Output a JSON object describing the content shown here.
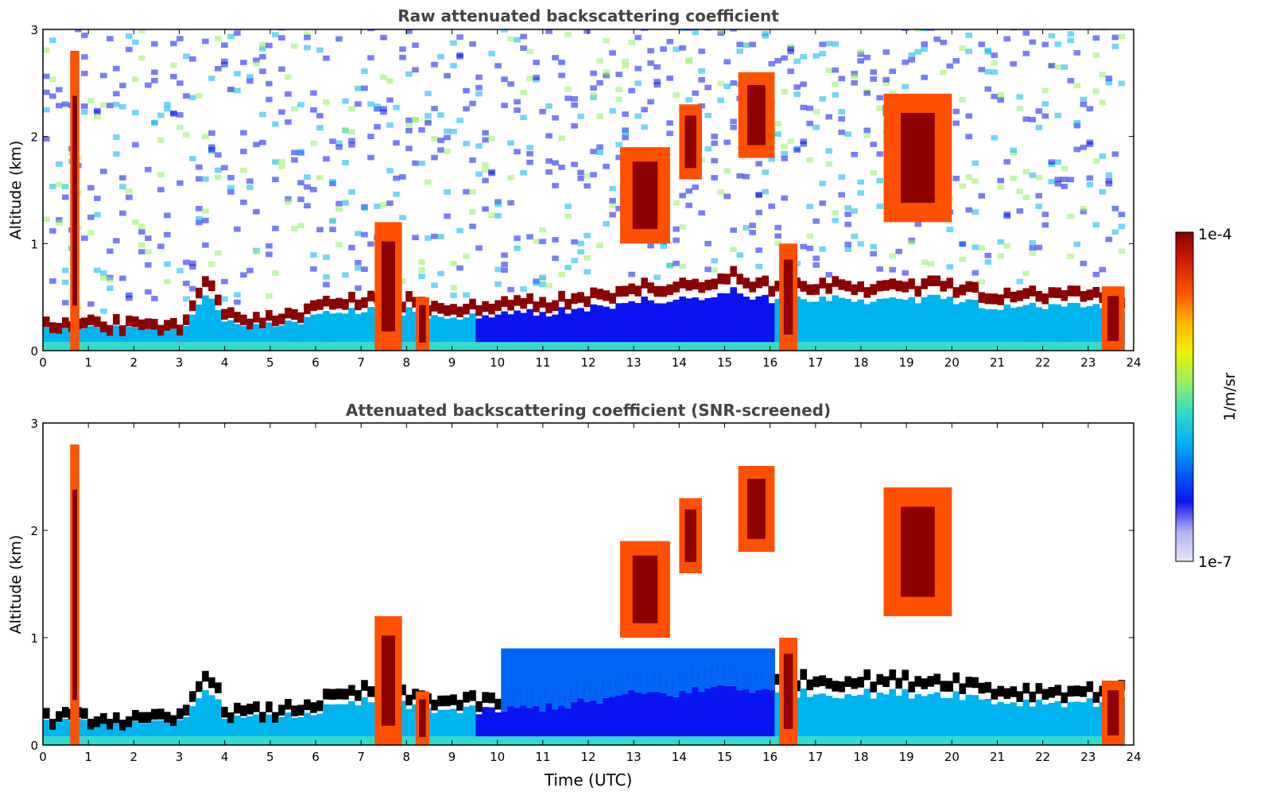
{
  "figure": {
    "shared_xlabel": "Time (UTC)",
    "colorbar": {
      "label": "1/m/sr",
      "max_label": "1e-4",
      "min_label": "1e-7",
      "scale": "log",
      "range": [
        1e-07,
        0.0001
      ],
      "colors": [
        "#e6e6f5",
        "#b0b0f0",
        "#0a14f0",
        "#0064f5",
        "#00b4f0",
        "#32dcc8",
        "#96f064",
        "#f0f000",
        "#ffb400",
        "#ff5000",
        "#d21e00",
        "#8c0000"
      ]
    }
  },
  "chart_data": [
    {
      "type": "heatmap",
      "title": "Raw attenuated backscattering coefficient",
      "xlabel": "",
      "ylabel": "Altitude (km)",
      "xlim": [
        0,
        24
      ],
      "ylim": [
        0,
        3
      ],
      "xticks": [
        "0",
        "1",
        "2",
        "3",
        "4",
        "5",
        "6",
        "7",
        "8",
        "9",
        "10",
        "11",
        "12",
        "13",
        "14",
        "15",
        "16",
        "17",
        "18",
        "19",
        "20",
        "21",
        "22",
        "23",
        "24"
      ],
      "yticks": [
        "0",
        "1",
        "2",
        "3"
      ],
      "boundary_layer_top_km": {
        "time_utc": [
          0,
          1,
          2,
          3,
          3.5,
          4,
          5,
          6,
          7,
          8,
          9,
          10,
          11,
          12,
          13,
          14,
          15,
          16,
          17,
          18,
          19,
          20,
          21,
          22,
          23,
          23.8
        ],
        "altitude_km": [
          0.25,
          0.25,
          0.22,
          0.25,
          0.7,
          0.3,
          0.3,
          0.4,
          0.5,
          0.45,
          0.4,
          0.4,
          0.45,
          0.5,
          0.6,
          0.6,
          0.7,
          0.6,
          0.6,
          0.6,
          0.6,
          0.6,
          0.5,
          0.5,
          0.5,
          0.5
        ]
      },
      "cloud_features": [
        {
          "time_utc": [
            0.6,
            0.8
          ],
          "altitude_km": [
            0.0,
            2.8
          ],
          "level": "high"
        },
        {
          "time_utc": [
            7.3,
            7.9
          ],
          "altitude_km": [
            0.0,
            1.2
          ],
          "level": "high"
        },
        {
          "time_utc": [
            8.2,
            8.5
          ],
          "altitude_km": [
            0.0,
            0.5
          ],
          "level": "high"
        },
        {
          "time_utc": [
            12.7,
            13.8
          ],
          "altitude_km": [
            1.0,
            1.9
          ],
          "level": "high"
        },
        {
          "time_utc": [
            14.0,
            14.5
          ],
          "altitude_km": [
            1.6,
            2.3
          ],
          "level": "high"
        },
        {
          "time_utc": [
            15.3,
            16.1
          ],
          "altitude_km": [
            1.8,
            2.6
          ],
          "level": "high"
        },
        {
          "time_utc": [
            16.2,
            16.6
          ],
          "altitude_km": [
            0.0,
            1.0
          ],
          "level": "high"
        },
        {
          "time_utc": [
            18.5,
            20.0
          ],
          "altitude_km": [
            1.2,
            2.4
          ],
          "level": "high"
        },
        {
          "time_utc": [
            23.3,
            23.8
          ],
          "altitude_km": [
            0.0,
            0.6
          ],
          "level": "high"
        }
      ]
    },
    {
      "type": "heatmap",
      "title": "Attenuated backscattering coefficient (SNR-screened)",
      "xlabel": "Time (UTC)",
      "ylabel": "Altitude (km)",
      "xlim": [
        0,
        24
      ],
      "ylim": [
        0,
        3
      ],
      "xticks": [
        "0",
        "1",
        "2",
        "3",
        "4",
        "5",
        "6",
        "7",
        "8",
        "9",
        "10",
        "11",
        "12",
        "13",
        "14",
        "15",
        "16",
        "17",
        "18",
        "19",
        "20",
        "21",
        "22",
        "23",
        "24"
      ],
      "yticks": [
        "0",
        "1",
        "2",
        "3"
      ],
      "screened": true
    }
  ]
}
